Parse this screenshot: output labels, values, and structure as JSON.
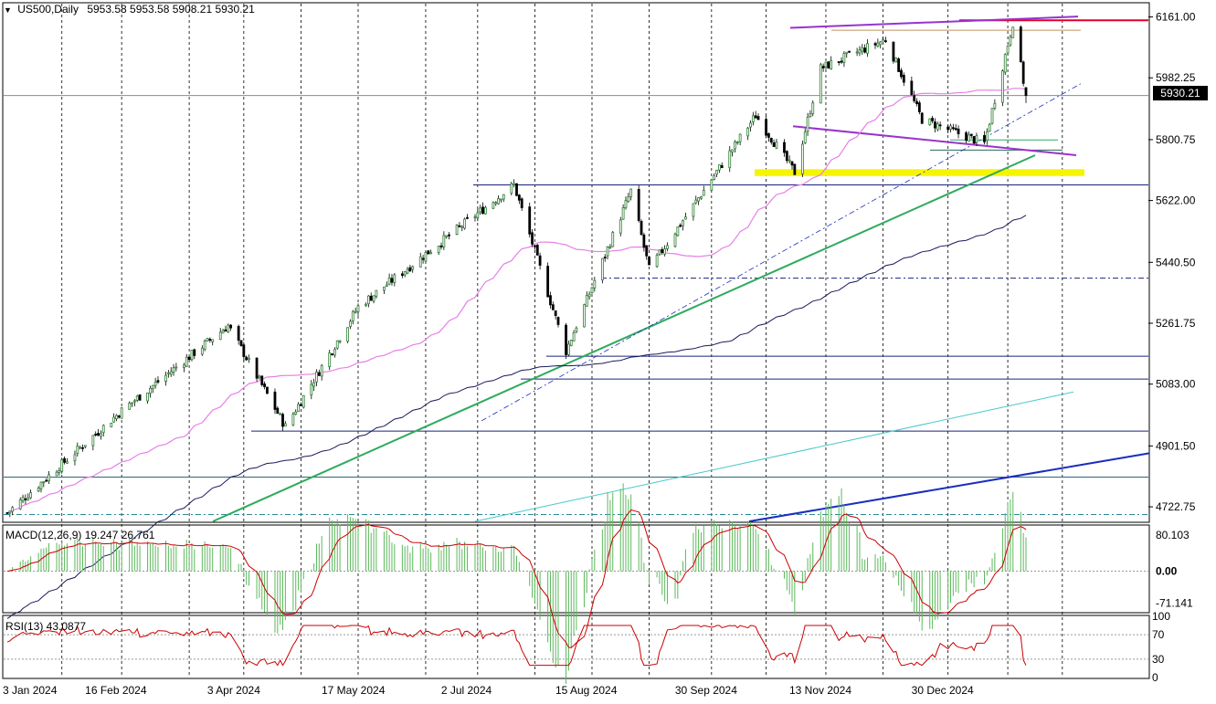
{
  "header": {
    "symbol": "US500,Daily",
    "ohlc": "5953.58 5953.58 5908.21 5930.21"
  },
  "current_price_label": "5930.21",
  "macd_label": "MACD(12,26,9) 19.247 26.761",
  "rsi_label": "RSI(13) 43.0877",
  "colors": {
    "bull_candle": "#2e7d32",
    "bear_candle": "#000000",
    "ma50": "#e680e6",
    "ma200": "#1a1a5e",
    "macd_hist": "#5cb85c",
    "macd_signal": "#cc0000",
    "rsi_line": "#cc0000",
    "trend_green": "#2eaa5c",
    "trend_teal": "#48c8c8",
    "trend_blue": "#1a2dbf",
    "channel_purple": "#9933cc",
    "resistance_red": "#e0002a",
    "support_zone": "#f5f500"
  },
  "chart_data": [
    {
      "type": "candlestick",
      "title": "US500,Daily",
      "y_ticks": [
        "6161.00",
        "5982.25",
        "5800.75",
        "5622.00",
        "5440.50",
        "5261.75",
        "5083.00",
        "4901.50",
        "4722.75"
      ],
      "x_ticks": [
        "3 Jan 2024",
        "16 Feb 2024",
        "3 Apr 2024",
        "17 May 2024",
        "2 Jul 2024",
        "15 Aug 2024",
        "30 Sep 2024",
        "13 Nov 2024",
        "30 Dec 2024"
      ],
      "ylim": [
        4680,
        6200
      ],
      "last_price": 5930.21,
      "key_points": [
        {
          "date": "2024-01-03",
          "close": 4705
        },
        {
          "date": "2024-02-16",
          "close": 5005
        },
        {
          "date": "2024-03-28",
          "close": 5255
        },
        {
          "date": "2024-04-19",
          "close": 4958
        },
        {
          "date": "2024-05-17",
          "close": 5310
        },
        {
          "date": "2024-07-16",
          "close": 5668
        },
        {
          "date": "2024-08-05",
          "close": 5180
        },
        {
          "date": "2024-08-30",
          "close": 5650
        },
        {
          "date": "2024-09-06",
          "close": 5420
        },
        {
          "date": "2024-10-17",
          "close": 5872
        },
        {
          "date": "2024-11-01",
          "close": 5705
        },
        {
          "date": "2024-11-11",
          "close": 6010
        },
        {
          "date": "2024-12-06",
          "close": 6095
        },
        {
          "date": "2024-12-20",
          "close": 5860
        },
        {
          "date": "2025-01-13",
          "close": 5790
        },
        {
          "date": "2025-01-24",
          "close": 6145
        },
        {
          "date": "2025-01-29",
          "close": 5930
        }
      ],
      "indicators": [
        "MA50",
        "MA200"
      ],
      "grid": true
    },
    {
      "type": "histogram",
      "title": "MACD(12,26,9) 19.247 26.761",
      "y_ticks": [
        "80.103",
        "0.00",
        "-71.141"
      ],
      "ylim": [
        -90,
        100
      ],
      "values": {
        "macd": 19.247,
        "signal": 26.761
      }
    },
    {
      "type": "line",
      "title": "RSI(13) 43.0877",
      "y_ticks": [
        "100",
        "70",
        "30",
        "0"
      ],
      "ylim": [
        0,
        100
      ],
      "levels": [
        70,
        30
      ],
      "last_value": 43.0877
    }
  ]
}
